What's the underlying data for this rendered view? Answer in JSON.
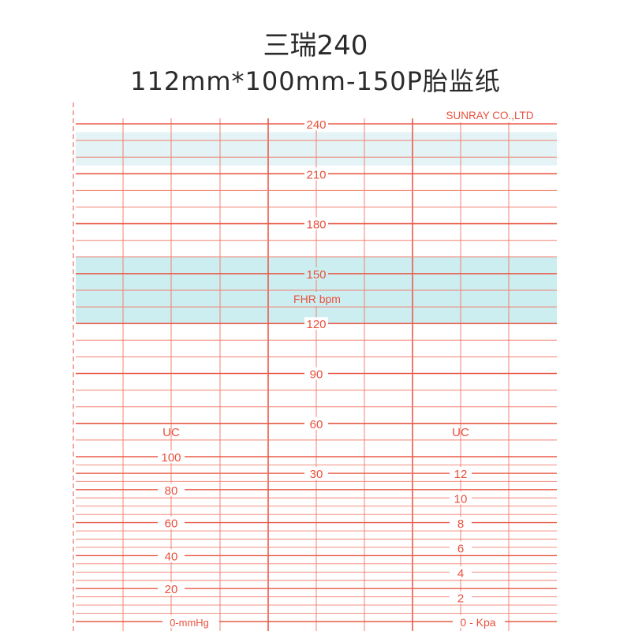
{
  "header": {
    "line1": "三瑞240",
    "line2": "112mm*100mm-150P胎监纸"
  },
  "paper": {
    "brand": "SUNRAY CO.,LTD",
    "fhr_label": "FHR  bpm",
    "fhr_scale": [
      "240",
      "210",
      "180",
      "150",
      "120",
      "90",
      "60",
      "30"
    ],
    "uc_left": {
      "title": "UC",
      "labels": [
        "100",
        "80",
        "60",
        "40",
        "20"
      ],
      "zero_label": "0-mmHg"
    },
    "uc_right": {
      "title": "UC",
      "labels": [
        "12",
        "10",
        "8",
        "6",
        "4",
        "2"
      ],
      "zero_label": "0 - Kpa"
    },
    "colors": {
      "grid": "#f08070",
      "grid_bold": "#e85a48",
      "band": "#cdeef0",
      "text": "#e8503c"
    }
  }
}
